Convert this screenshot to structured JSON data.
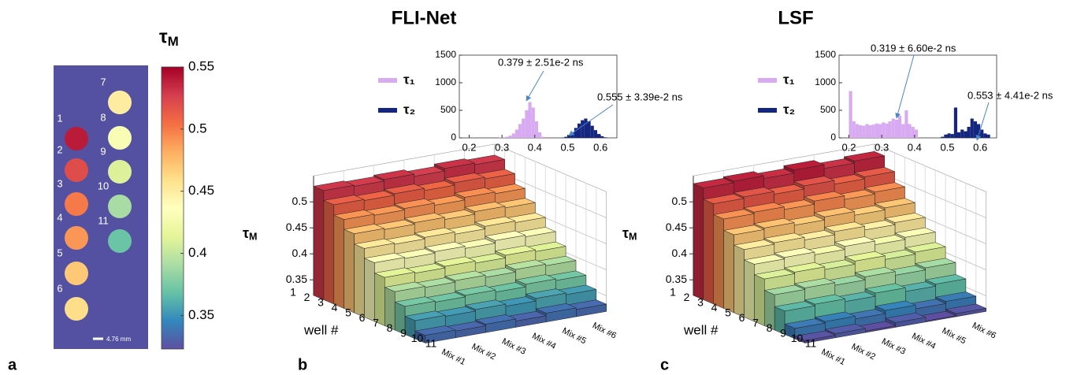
{
  "chart_data": [
    {
      "type": "image",
      "panel": "a",
      "title": "τM",
      "wells": {
        "labels": [
          "1",
          "2",
          "3",
          "4",
          "5",
          "6",
          "7",
          "8",
          "9",
          "10",
          "11"
        ],
        "values": [
          0.54,
          0.52,
          0.5,
          0.49,
          0.47,
          0.46,
          0.45,
          0.43,
          0.41,
          0.39,
          0.37
        ]
      },
      "scale_bar": "4.76 mm",
      "clim": [
        0.323,
        0.55
      ],
      "cticks": [
        0.35,
        0.4,
        0.45,
        0.5,
        0.55
      ],
      "colormap": [
        "#5e4fa2",
        "#3288bd",
        "#66c2a5",
        "#abdda4",
        "#e6f598",
        "#ffffbf",
        "#fee08b",
        "#fdae61",
        "#f46d43",
        "#d53e4f",
        "#a50026"
      ]
    },
    {
      "type": "bar3d",
      "panel": "b",
      "title": "FLI-Net",
      "zlabel": "τM",
      "xlabel": "well #",
      "categories": [
        "1",
        "2",
        "3",
        "4",
        "5",
        "6",
        "7",
        "8",
        "9",
        "10",
        "11"
      ],
      "mixes": [
        "Mix #1",
        "Mix #2",
        "Mix #3",
        "Mix #4",
        "Mix #5",
        "Mix #6"
      ],
      "z": [
        [
          0.53,
          0.528,
          0.531,
          0.527,
          0.532,
          0.529
        ],
        [
          0.511,
          0.509,
          0.512,
          0.508,
          0.513,
          0.51
        ],
        [
          0.491,
          0.489,
          0.492,
          0.488,
          0.493,
          0.49
        ],
        [
          0.472,
          0.47,
          0.473,
          0.469,
          0.474,
          0.471
        ],
        [
          0.452,
          0.45,
          0.453,
          0.449,
          0.454,
          0.451
        ],
        [
          0.433,
          0.431,
          0.434,
          0.43,
          0.435,
          0.432
        ],
        [
          0.413,
          0.411,
          0.414,
          0.41,
          0.415,
          0.412
        ],
        [
          0.394,
          0.392,
          0.395,
          0.391,
          0.396,
          0.393
        ],
        [
          0.374,
          0.372,
          0.375,
          0.371,
          0.376,
          0.373
        ],
        [
          0.355,
          0.353,
          0.356,
          0.352,
          0.357,
          0.354
        ],
        [
          0.335,
          0.333,
          0.336,
          0.332,
          0.337,
          0.334
        ]
      ],
      "zlim": [
        0.32,
        0.55
      ],
      "zticks": [
        0.35,
        0.4,
        0.45,
        0.5
      ],
      "grid": true,
      "inset": {
        "type": "histogram",
        "bins": [
          0.2,
          0.21,
          0.22,
          0.23,
          0.24,
          0.25,
          0.26,
          0.27,
          0.28,
          0.29,
          0.3,
          0.31,
          0.32,
          0.33,
          0.34,
          0.35,
          0.36,
          0.37,
          0.38,
          0.39,
          0.4,
          0.41,
          0.42,
          0.43,
          0.44,
          0.45,
          0.46,
          0.47,
          0.48,
          0.49,
          0.5,
          0.51,
          0.52,
          0.53,
          0.54,
          0.55,
          0.56,
          0.57,
          0.58,
          0.59,
          0.6,
          0.61,
          0.62,
          0.63,
          0.64,
          0.65
        ],
        "series": [
          {
            "name": "τ₁",
            "color": "#d8aaf2",
            "values": [
              0,
              0,
              0,
              0,
              0,
              0,
              0,
              0,
              0,
              5,
              10,
              20,
              40,
              80,
              150,
              250,
              350,
              500,
              650,
              550,
              300,
              100,
              20,
              0,
              0,
              0,
              0,
              0,
              0,
              0,
              0,
              0,
              0,
              0,
              0,
              0,
              0,
              0,
              0,
              0,
              0,
              0,
              0,
              0,
              0
            ]
          },
          {
            "name": "τ₂",
            "color": "#14267f",
            "values": [
              0,
              0,
              0,
              0,
              0,
              0,
              0,
              0,
              0,
              0,
              0,
              0,
              0,
              0,
              0,
              0,
              0,
              0,
              0,
              0,
              0,
              0,
              0,
              0,
              0,
              0,
              0,
              0,
              5,
              20,
              50,
              100,
              180,
              260,
              320,
              350,
              300,
              220,
              140,
              70,
              30,
              10,
              0,
              0,
              0
            ]
          }
        ],
        "xlim": [
          0.17,
          0.65
        ],
        "xticks": [
          0.2,
          0.3,
          0.4,
          0.5,
          0.6
        ],
        "ylim": [
          0,
          1500
        ],
        "yticks": [
          0,
          500,
          1000,
          1500
        ],
        "annotations": [
          "0.379 ± 2.51e-2 ns",
          "0.555 ± 3.39e-2 ns"
        ]
      }
    },
    {
      "type": "bar3d",
      "panel": "c",
      "title": "LSF",
      "zlabel": "τM",
      "xlabel": "well #",
      "categories": [
        "1",
        "2",
        "3",
        "4",
        "5",
        "6",
        "7",
        "8",
        "9",
        "10",
        "11"
      ],
      "mixes": [
        "Mix #1",
        "Mix #2",
        "Mix #3",
        "Mix #4",
        "Mix #5",
        "Mix #6"
      ],
      "z": [
        [
          0.535,
          0.538,
          0.533,
          0.539,
          0.532,
          0.536
        ],
        [
          0.513,
          0.516,
          0.511,
          0.517,
          0.51,
          0.514
        ],
        [
          0.492,
          0.495,
          0.49,
          0.496,
          0.489,
          0.493
        ],
        [
          0.47,
          0.473,
          0.468,
          0.474,
          0.467,
          0.471
        ],
        [
          0.45,
          0.453,
          0.448,
          0.454,
          0.447,
          0.451
        ],
        [
          0.43,
          0.433,
          0.428,
          0.434,
          0.427,
          0.431
        ],
        [
          0.41,
          0.413,
          0.408,
          0.414,
          0.407,
          0.411
        ],
        [
          0.388,
          0.391,
          0.386,
          0.392,
          0.385,
          0.389
        ],
        [
          0.365,
          0.368,
          0.363,
          0.369,
          0.362,
          0.366
        ],
        [
          0.34,
          0.343,
          0.338,
          0.344,
          0.337,
          0.341
        ],
        [
          0.325,
          0.328,
          0.323,
          0.329,
          0.322,
          0.326
        ]
      ],
      "zlim": [
        0.32,
        0.55
      ],
      "zticks": [
        0.35,
        0.4,
        0.45,
        0.5
      ],
      "grid": true,
      "inset": {
        "type": "histogram",
        "bins": [
          0.2,
          0.21,
          0.22,
          0.23,
          0.24,
          0.25,
          0.26,
          0.27,
          0.28,
          0.29,
          0.3,
          0.31,
          0.32,
          0.33,
          0.34,
          0.35,
          0.36,
          0.37,
          0.38,
          0.39,
          0.4,
          0.41,
          0.42,
          0.43,
          0.44,
          0.45,
          0.46,
          0.47,
          0.48,
          0.49,
          0.5,
          0.51,
          0.52,
          0.53,
          0.54,
          0.55,
          0.56,
          0.57,
          0.58,
          0.59,
          0.6,
          0.61,
          0.62,
          0.63,
          0.64,
          0.65
        ],
        "series": [
          {
            "name": "τ₁",
            "color": "#d8aaf2",
            "values": [
              850,
              300,
              250,
              230,
              220,
              250,
              230,
              240,
              260,
              250,
              280,
              260,
              300,
              350,
              330,
              400,
              250,
              500,
              250,
              200,
              150,
              0,
              0,
              0,
              0,
              0,
              0,
              0,
              0,
              0,
              0,
              0,
              0,
              0,
              0,
              0,
              0,
              0,
              0,
              0,
              0,
              0,
              0,
              0,
              0
            ]
          },
          {
            "name": "τ₂",
            "color": "#14267f",
            "values": [
              0,
              0,
              0,
              0,
              0,
              0,
              0,
              0,
              0,
              0,
              0,
              0,
              0,
              0,
              0,
              0,
              0,
              0,
              0,
              0,
              0,
              0,
              0,
              0,
              0,
              0,
              0,
              0,
              20,
              60,
              80,
              70,
              550,
              100,
              150,
              120,
              200,
              350,
              300,
              250,
              150,
              80,
              60,
              0,
              0
            ]
          }
        ],
        "xlim": [
          0.17,
          0.65
        ],
        "xticks": [
          0.2,
          0.3,
          0.4,
          0.5,
          0.6
        ],
        "ylim": [
          0,
          1500
        ],
        "yticks": [
          0,
          500,
          1000,
          1500
        ],
        "annotations": [
          "0.319 ± 6.60e-2 ns",
          "0.553 ± 4.41e-2 ns"
        ]
      }
    }
  ]
}
